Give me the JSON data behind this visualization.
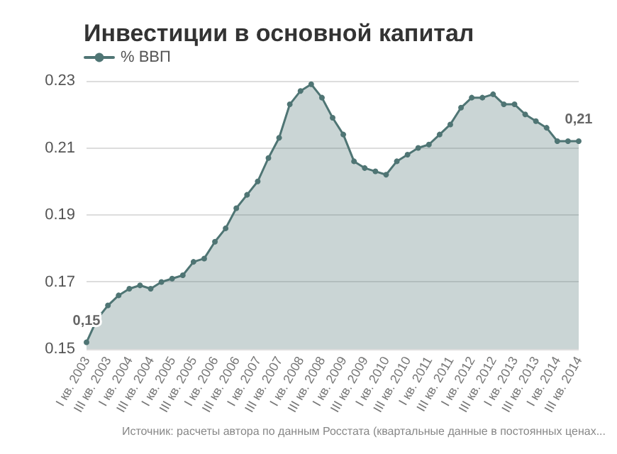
{
  "chart_data": {
    "type": "area",
    "title": "Инвестиции в основной капитал",
    "categories": [
      "I кв. 2003",
      null,
      "III кв. 2003",
      null,
      "I кв. 2004",
      null,
      "III кв. 2004",
      null,
      "I кв. 2005",
      null,
      "III кв. 2005",
      null,
      "I кв. 2006",
      null,
      "III кв. 2006",
      null,
      "I кв. 2007",
      null,
      "III кв. 2007",
      null,
      "I кв. 2008",
      null,
      "III кв. 2008",
      null,
      "I кв. 2009",
      null,
      "III кв. 2009",
      null,
      "I кв. 2010",
      null,
      "III кв. 2010",
      null,
      "I кв. 2011",
      null,
      "III кв. 2011",
      null,
      "I кв. 2012",
      null,
      "III кв. 2012",
      null,
      "I кв. 2013",
      null,
      "III кв. 2013",
      null,
      "I кв. 2014",
      null,
      "III кв. 2014"
    ],
    "series": [
      {
        "name": "% ВВП",
        "color": "#4f7574",
        "values": [
          0.152,
          0.159,
          0.163,
          0.166,
          0.168,
          0.169,
          0.168,
          0.17,
          0.171,
          0.172,
          0.176,
          0.177,
          0.182,
          0.186,
          0.192,
          0.196,
          0.2,
          0.207,
          0.213,
          0.223,
          0.227,
          0.229,
          0.225,
          0.219,
          0.214,
          0.206,
          0.204,
          0.203,
          0.202,
          0.206,
          0.208,
          0.21,
          0.211,
          0.214,
          0.217,
          0.222,
          0.225,
          0.225,
          0.226,
          0.223,
          0.223,
          0.22,
          0.218,
          0.216,
          0.212,
          0.212,
          0.212
        ],
        "value_labels": [
          "0,15",
          null,
          null,
          null,
          null,
          null,
          null,
          null,
          null,
          null,
          null,
          null,
          null,
          null,
          null,
          null,
          null,
          null,
          null,
          null,
          null,
          null,
          null,
          null,
          null,
          null,
          null,
          null,
          null,
          null,
          null,
          null,
          null,
          null,
          null,
          null,
          null,
          null,
          null,
          null,
          null,
          null,
          null,
          null,
          null,
          null,
          "0,21"
        ]
      }
    ],
    "ylim": [
      0.15,
      0.23
    ],
    "yticks": [
      0.15,
      0.17,
      0.19,
      0.21,
      0.23
    ],
    "grid": "y",
    "legend": "top left",
    "marker": "circle",
    "line_style": "solid",
    "annotations": [
      "Источник: расчеты автора по данным Росстата (квартальные данные в постоянных ценах..."
    ]
  }
}
